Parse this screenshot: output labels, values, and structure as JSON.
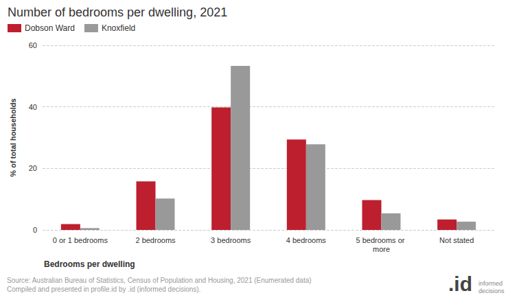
{
  "chart_data": {
    "type": "bar",
    "title": "Number of bedrooms per dwelling, 2021",
    "x_label": "Bedrooms per dwelling",
    "y_label": "% of total households",
    "categories": [
      "0 or 1 bedrooms",
      "2 bedrooms",
      "3 bedrooms",
      "4 bedrooms",
      "5 bedrooms or more",
      "Not stated"
    ],
    "series": [
      {
        "name": "Dobson Ward",
        "color": "#bd1f2e",
        "values": [
          1.9,
          15.8,
          39.8,
          29.4,
          9.7,
          3.4
        ]
      },
      {
        "name": "Knoxfield",
        "color": "#999999",
        "values": [
          0.6,
          10.2,
          53.3,
          27.8,
          5.4,
          2.7
        ]
      }
    ],
    "ylim": [
      0,
      60
    ],
    "yticks": [
      0,
      20,
      40,
      60
    ],
    "grid": true,
    "legend": "top-left",
    "source": [
      "Source: Australian Bureau of Statistics, Census of Population and Housing, 2021 (Enumerated data)",
      "Compiled and presented in profile.id by .id (informed decisions)."
    ],
    "logo": [
      ".id",
      "informed decisions"
    ]
  }
}
